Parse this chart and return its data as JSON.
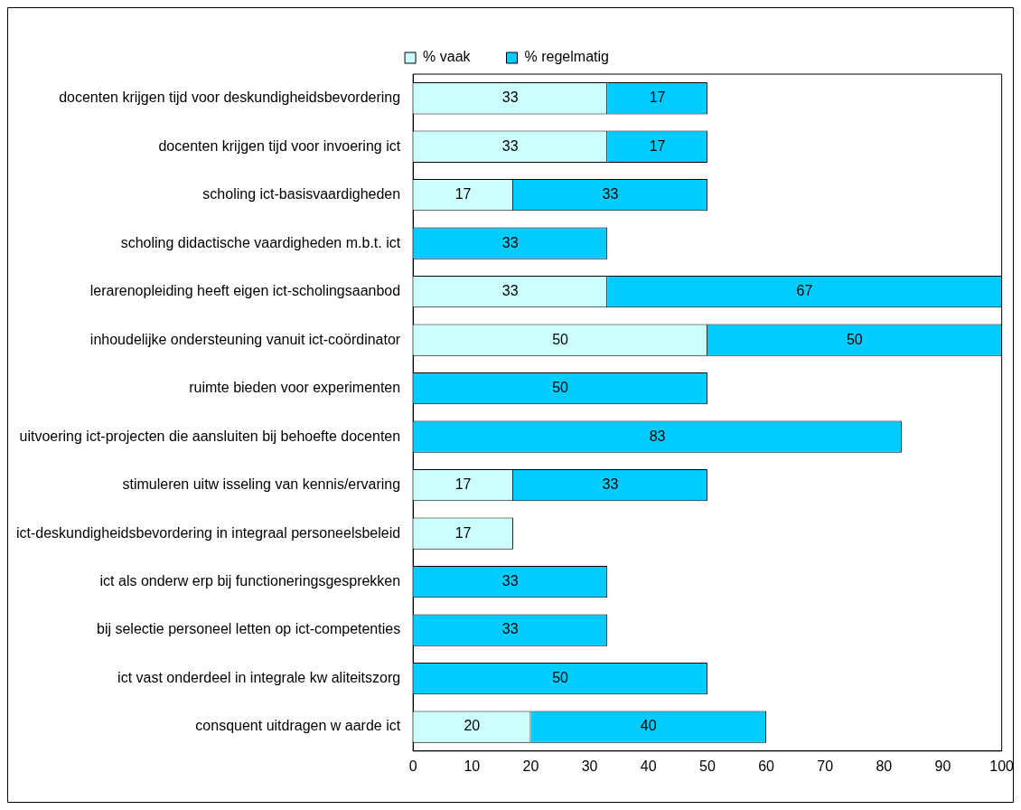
{
  "chart_data": {
    "type": "bar",
    "orientation": "horizontal",
    "stacked": true,
    "data_labels": true,
    "legend": "top",
    "categories": [
      "docenten krijgen tijd voor deskundigheidsbevordering",
      "docenten krijgen tijd voor invoering ict",
      "scholing ict-basisvaardigheden",
      "scholing didactische vaardigheden m.b.t. ict",
      "lerarenopleiding heeft eigen ict-scholingsaanbod",
      "inhoudelijke ondersteuning vanuit ict-coördinator",
      "ruimte bieden voor experimenten",
      "uitvoering ict-projecten die aansluiten bij behoefte docenten",
      "stimuleren uitw isseling van kennis/ervaring",
      "ict-deskundigheidsbevordering in integraal personeelsbeleid",
      "ict als onderw erp bij functioneringsgesprekken",
      "bij selectie personeel letten op ict-competenties",
      "ict vast onderdeel in integrale kw aliteitszorg",
      "consquent uitdragen w aarde ict"
    ],
    "series": [
      {
        "name": "% vaak",
        "color": "#ccffff",
        "values": [
          33,
          33,
          17,
          null,
          33,
          50,
          null,
          null,
          17,
          17,
          null,
          null,
          null,
          20
        ]
      },
      {
        "name": "% regelmatig",
        "color": "#00ccff",
        "values": [
          17,
          17,
          33,
          33,
          67,
          50,
          50,
          83,
          33,
          null,
          33,
          33,
          50,
          40
        ]
      }
    ],
    "xlim": [
      0,
      100
    ],
    "xticks": [
      0,
      10,
      20,
      30,
      40,
      50,
      60,
      70,
      80,
      90,
      100
    ]
  }
}
